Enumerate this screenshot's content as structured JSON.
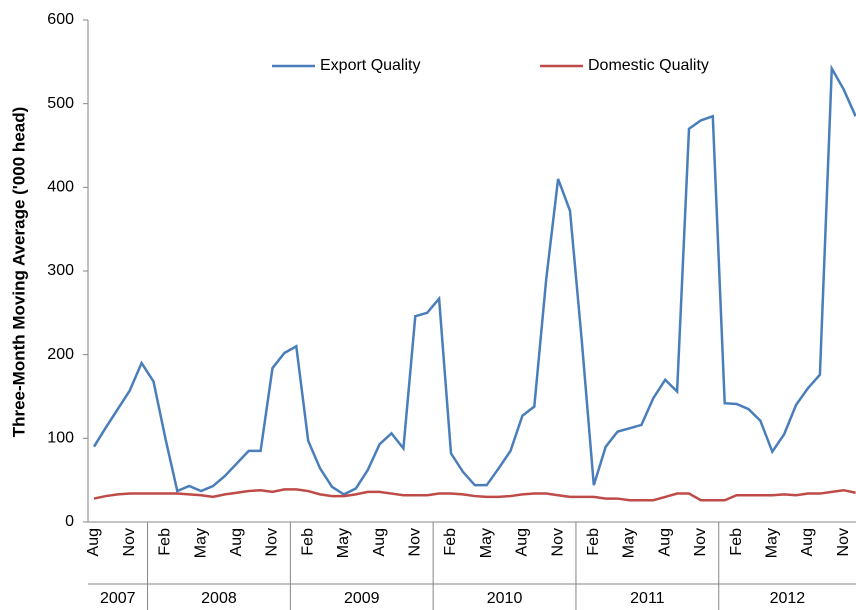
{
  "chart_data": {
    "type": "line",
    "y_label": "Three-Month Moving Average ('000 head)",
    "categories": [
      "Aug",
      null,
      null,
      "Nov",
      null,
      null,
      "Feb",
      null,
      null,
      "May",
      null,
      null,
      "Aug",
      null,
      null,
      "Nov",
      null,
      null,
      "Feb",
      null,
      null,
      "May",
      null,
      null,
      "Aug",
      null,
      null,
      "Nov",
      null,
      null,
      "Feb",
      null,
      null,
      "May",
      null,
      null,
      "Aug",
      null,
      null,
      "Nov",
      null,
      null,
      "Feb",
      null,
      null,
      "May",
      null,
      null,
      "Aug",
      null,
      null,
      "Nov",
      null,
      null,
      "Feb",
      null,
      null,
      "May",
      null,
      null,
      "Aug",
      null,
      null,
      "Nov",
      null
    ],
    "groups": [
      "2007",
      "2008",
      "2009",
      "2010",
      "2011",
      "2012"
    ],
    "series": [
      {
        "name": "Export Quality",
        "color": "#4a7ebb",
        "values": [
          90,
          113,
          135,
          157,
          190,
          168,
          100,
          37,
          43,
          37,
          43,
          55,
          70,
          85,
          85,
          184,
          202,
          210,
          97,
          64,
          42,
          33,
          40,
          62,
          93,
          106,
          88,
          246,
          250,
          267,
          82,
          60,
          44,
          44,
          64,
          85,
          127,
          138,
          290,
          410,
          372,
          215,
          44,
          90,
          108,
          112,
          116,
          148,
          170,
          156,
          470,
          480,
          485,
          142,
          141,
          135,
          121,
          84,
          105,
          140,
          160,
          176,
          542,
          517,
          485
        ]
      },
      {
        "name": "Domestic Quality",
        "color": "#be4b48",
        "values": [
          28,
          31,
          33,
          34,
          34,
          34,
          34,
          34,
          33,
          32,
          30,
          33,
          35,
          37,
          38,
          36,
          39,
          39,
          37,
          33,
          31,
          31,
          33,
          36,
          36,
          34,
          32,
          32,
          32,
          34,
          34,
          33,
          31,
          30,
          30,
          31,
          33,
          34,
          34,
          32,
          30,
          30,
          30,
          28,
          28,
          26,
          26,
          26,
          30,
          34,
          34,
          26,
          26,
          26,
          32,
          32,
          32,
          32,
          33,
          32,
          34,
          34,
          36,
          38,
          35
        ]
      }
    ],
    "ylim": [
      0,
      600
    ],
    "yticks": [
      0,
      100,
      200,
      300,
      400,
      500,
      600
    ],
    "grid": false,
    "legend": "top"
  }
}
